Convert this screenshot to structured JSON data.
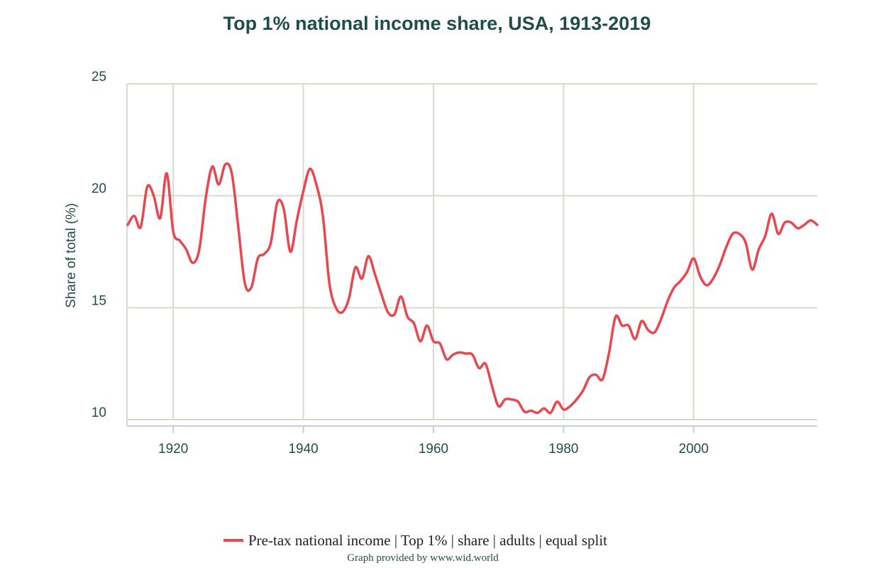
{
  "chart_data": {
    "type": "line",
    "title": "Top 1% national income share, USA, 1913-2019",
    "xlabel": "",
    "ylabel": "Share of total (%)",
    "xlim": [
      1913,
      2019
    ],
    "ylim": [
      10,
      25
    ],
    "x_ticks": [
      1920,
      1940,
      1960,
      1980,
      2000
    ],
    "y_ticks": [
      10,
      15,
      20,
      25
    ],
    "grid": true,
    "legend_position": "bottom",
    "series": [
      {
        "name": "Pre-tax national income | Top 1% | share | adults | equal split",
        "color": "#e8474f",
        "x": [
          1913,
          1914,
          1915,
          1916,
          1917,
          1918,
          1919,
          1920,
          1921,
          1922,
          1923,
          1924,
          1925,
          1926,
          1927,
          1928,
          1929,
          1930,
          1931,
          1932,
          1933,
          1934,
          1935,
          1936,
          1937,
          1938,
          1939,
          1940,
          1941,
          1942,
          1943,
          1944,
          1945,
          1946,
          1947,
          1948,
          1949,
          1950,
          1951,
          1952,
          1953,
          1954,
          1955,
          1956,
          1957,
          1958,
          1959,
          1960,
          1961,
          1962,
          1963,
          1964,
          1965,
          1966,
          1967,
          1968,
          1969,
          1970,
          1971,
          1972,
          1973,
          1974,
          1975,
          1976,
          1977,
          1978,
          1979,
          1980,
          1981,
          1982,
          1983,
          1984,
          1985,
          1986,
          1987,
          1988,
          1989,
          1990,
          1991,
          1992,
          1993,
          1994,
          1995,
          1996,
          1997,
          1998,
          1999,
          2000,
          2001,
          2002,
          2003,
          2004,
          2005,
          2006,
          2007,
          2008,
          2009,
          2010,
          2011,
          2012,
          2013,
          2014,
          2015,
          2016,
          2017,
          2018,
          2019
        ],
        "values": [
          18.7,
          19.1,
          18.6,
          20.4,
          20.0,
          19.0,
          21.0,
          18.4,
          18.0,
          17.6,
          17.0,
          17.6,
          19.9,
          21.3,
          20.5,
          21.4,
          21.0,
          18.6,
          16.1,
          15.9,
          17.2,
          17.4,
          17.9,
          19.7,
          19.4,
          17.5,
          18.9,
          20.2,
          21.2,
          20.5,
          19.1,
          16.1,
          15.0,
          14.8,
          15.4,
          16.8,
          16.3,
          17.3,
          16.5,
          15.6,
          14.8,
          14.7,
          15.5,
          14.6,
          14.3,
          13.5,
          14.2,
          13.5,
          13.4,
          12.7,
          12.9,
          13.0,
          12.95,
          12.9,
          12.3,
          12.5,
          11.5,
          10.6,
          10.9,
          10.9,
          10.8,
          10.35,
          10.4,
          10.3,
          10.5,
          10.3,
          10.8,
          10.45,
          10.6,
          10.9,
          11.3,
          11.9,
          12.0,
          11.8,
          13.0,
          14.6,
          14.2,
          14.2,
          13.6,
          14.4,
          14.0,
          13.9,
          14.5,
          15.3,
          15.9,
          16.2,
          16.6,
          17.2,
          16.4,
          16.0,
          16.3,
          16.9,
          17.7,
          18.3,
          18.3,
          17.9,
          16.7,
          17.6,
          18.2,
          19.2,
          18.3,
          18.8,
          18.8,
          18.55,
          18.7,
          18.9,
          18.7
        ]
      }
    ],
    "credit": "Graph provided by www.wid.world"
  }
}
